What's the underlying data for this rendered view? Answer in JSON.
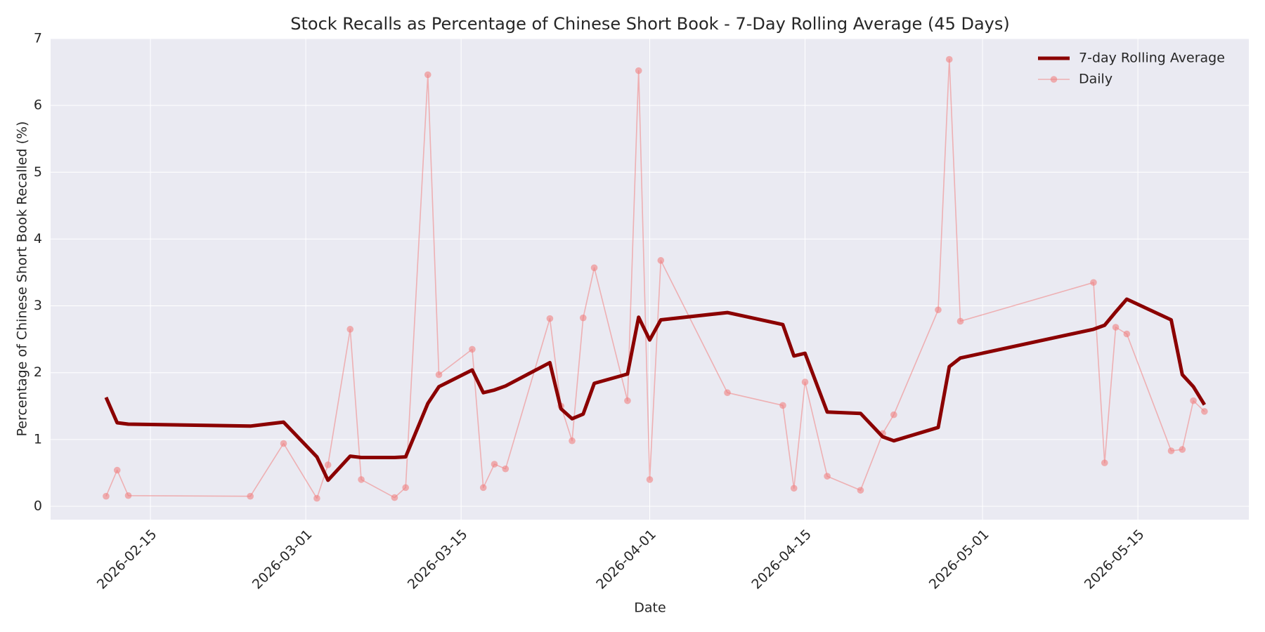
{
  "chart_data": {
    "type": "line",
    "title": "Stock Recalls as Percentage of Chinese Short Book - 7-Day Rolling Average (45 Days)",
    "x_label": "Date",
    "y_label": "Percentage of Chinese Short Book Recalled (%)",
    "x": [
      "2026-02-11",
      "2026-02-12",
      "2026-02-13",
      "2026-02-24",
      "2026-02-27",
      "2026-03-02",
      "2026-03-03",
      "2026-03-05",
      "2026-03-06",
      "2026-03-09",
      "2026-03-10",
      "2026-03-12",
      "2026-03-13",
      "2026-03-16",
      "2026-03-17",
      "2026-03-18",
      "2026-03-19",
      "2026-03-23",
      "2026-03-24",
      "2026-03-25",
      "2026-03-26",
      "2026-03-27",
      "2026-03-30",
      "2026-03-31",
      "2026-04-01",
      "2026-04-02",
      "2026-04-08",
      "2026-04-13",
      "2026-04-14",
      "2026-04-15",
      "2026-04-17",
      "2026-04-20",
      "2026-04-22",
      "2026-04-23",
      "2026-04-27",
      "2026-04-28",
      "2026-04-29",
      "2026-05-11",
      "2026-05-12",
      "2026-05-13",
      "2026-05-14",
      "2026-05-18",
      "2026-05-19",
      "2026-05-20",
      "2026-05-21"
    ],
    "series": [
      {
        "name": "7-day Rolling Average",
        "color": "#8b0000",
        "values": [
          1.63,
          1.25,
          1.23,
          1.2,
          1.26,
          0.74,
          0.39,
          0.75,
          0.73,
          0.73,
          0.74,
          1.54,
          1.79,
          2.04,
          1.7,
          1.74,
          1.8,
          2.15,
          1.46,
          1.31,
          1.38,
          1.84,
          1.98,
          2.83,
          2.49,
          2.79,
          2.9,
          2.72,
          2.25,
          2.29,
          1.41,
          1.39,
          1.04,
          0.98,
          1.18,
          2.09,
          2.22,
          2.65,
          2.71,
          2.91,
          3.1,
          2.79,
          1.97,
          1.79,
          1.52
        ]
      },
      {
        "name": "Daily",
        "color": "#f08080",
        "values": [
          0.15,
          0.54,
          0.16,
          0.15,
          0.94,
          0.12,
          0.62,
          2.65,
          0.4,
          0.13,
          0.28,
          6.46,
          1.97,
          2.35,
          0.28,
          0.63,
          0.56,
          2.81,
          1.5,
          0.98,
          2.82,
          3.57,
          1.58,
          6.52,
          0.4,
          3.68,
          1.7,
          1.51,
          0.27,
          1.86,
          0.45,
          0.24,
          1.09,
          1.37,
          2.94,
          6.69,
          2.77,
          3.35,
          0.65,
          2.68,
          2.58,
          0.83,
          0.85,
          1.58,
          1.42
        ]
      }
    ],
    "xlim": [
      "2026-02-06",
      "2026-05-25"
    ],
    "xticks": [
      "2026-02-15",
      "2026-03-01",
      "2026-03-15",
      "2026-04-01",
      "2026-04-15",
      "2026-05-01",
      "2026-05-15"
    ],
    "ylim": [
      -0.2,
      7
    ],
    "yticks": [
      0,
      1,
      2,
      3,
      4,
      5,
      6,
      7
    ],
    "grid": true,
    "legend": "upper right"
  }
}
